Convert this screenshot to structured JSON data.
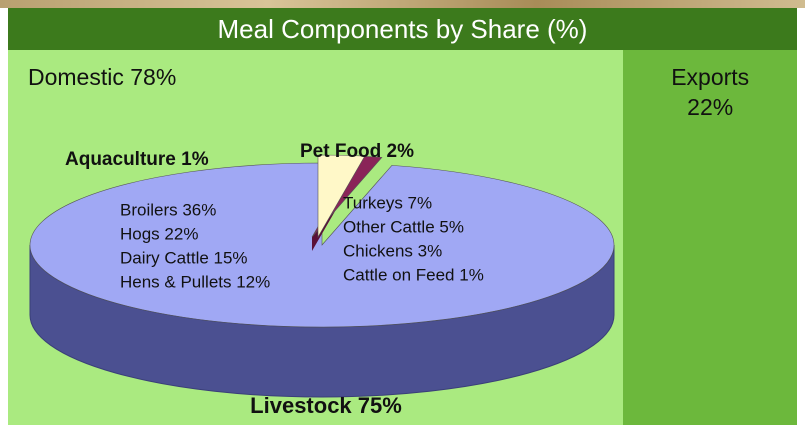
{
  "chart_data": [
    {
      "type": "split",
      "title": "Meal Components by Share (%)",
      "categories": [
        "Domestic",
        "Exports"
      ],
      "values": [
        78,
        22
      ],
      "value_labels": [
        "Domestic 78%",
        "Exports 22%"
      ],
      "colors": [
        "#aaea80",
        "#6cb83c"
      ]
    },
    {
      "type": "pie",
      "categories": [
        "Livestock",
        "Aquaculture",
        "Pet Food"
      ],
      "values": [
        75,
        1,
        2
      ],
      "value_labels": [
        "Livestock 75%",
        "Aquaculture 1%",
        "Pet Food 2%"
      ],
      "colors": [
        "#a0a8f4",
        "#8a2458",
        "#fff8c8"
      ],
      "annotations": [
        "Broilers 36%",
        "Hogs 22%",
        "Dairy Cattle 15%",
        "Hens & Pullets 12%",
        "Turkeys 7%",
        "Other Cattle 5%",
        "Chickens 3%",
        "Cattle on Feed 1%"
      ]
    }
  ]
}
